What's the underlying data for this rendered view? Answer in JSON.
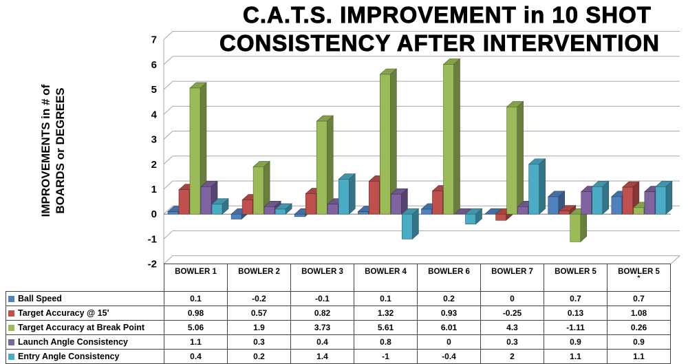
{
  "title": {
    "line1": "C.A.T.S. IMPROVEMENT in 10 SHOT",
    "line2": "CONSISTENCY AFTER INTERVENTION"
  },
  "y_axis": {
    "label_line1": "IMPROVEMENTS in # of",
    "label_line2": "BOARDS or DEGREES",
    "min": -2,
    "max": 7,
    "step": 1
  },
  "colors": {
    "gridline": "#A6A6A6",
    "zero_line": "#808080",
    "table_border": "#404040"
  },
  "chart_data": {
    "type": "bar",
    "title": "C.A.T.S. IMPROVEMENT in 10 SHOT CONSISTENCY AFTER INTERVENTION",
    "ylabel": "IMPROVEMENTS in # of BOARDS or DEGREES",
    "ylim": [
      -2,
      7
    ],
    "grid": true,
    "legend_position": "table-left",
    "categories": [
      "BOWLER 1",
      "BOWLER 2",
      "BOWLER 3",
      "BOWLER 4",
      "BOWLER 6",
      "BOWLER 7",
      "BOWLER 5",
      "BOWLER 5"
    ],
    "category_notes": [
      "",
      "",
      "",
      "",
      "",
      "",
      "",
      "*"
    ],
    "series": [
      {
        "name": "Ball Speed",
        "color": "#4F81BD",
        "values": [
          0.1,
          -0.2,
          -0.1,
          0.1,
          0.2,
          0,
          0.7,
          0.7
        ]
      },
      {
        "name": "Target Accuracy @ 15'",
        "color": "#C0504D",
        "values": [
          0.98,
          0.57,
          0.82,
          1.32,
          0.93,
          -0.25,
          0.13,
          1.08
        ]
      },
      {
        "name": "Target Accuracy at Break Point",
        "color": "#9BBB59",
        "values": [
          5.06,
          1.9,
          3.73,
          5.61,
          6.01,
          4.3,
          -1.11,
          0.26
        ]
      },
      {
        "name": "Launch Angle Consistency",
        "color": "#8064A2",
        "values": [
          1.1,
          0.3,
          0.4,
          0.8,
          0,
          0.3,
          0.9,
          0.9
        ]
      },
      {
        "name": "Entry Angle Consistency",
        "color": "#4BACC6",
        "values": [
          0.4,
          0.2,
          1.4,
          -1,
          -0.4,
          2,
          1.1,
          1.1
        ]
      }
    ]
  }
}
